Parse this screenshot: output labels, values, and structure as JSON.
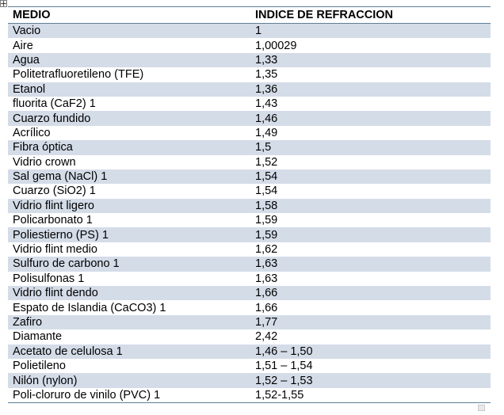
{
  "table": {
    "headers": [
      "MEDIO",
      "INDICE DE REFRACCION"
    ],
    "rows": [
      [
        "Vacio",
        "1"
      ],
      [
        "Aire",
        "1,00029"
      ],
      [
        "Agua",
        "1,33"
      ],
      [
        "Politetrafluoretileno (TFE)",
        "1,35"
      ],
      [
        "Etanol",
        "1,36"
      ],
      [
        "fluorita (CaF2) 1",
        "1,43"
      ],
      [
        "Cuarzo fundido",
        "1,46"
      ],
      [
        "Acrílico",
        "1,49"
      ],
      [
        "Fibra óptica",
        "1,5"
      ],
      [
        "Vidrio crown",
        "1,52"
      ],
      [
        "Sal gema (NaCl) 1",
        "1,54"
      ],
      [
        "Cuarzo (SiO2) 1",
        "1,54"
      ],
      [
        "Vidrio flint ligero",
        "1,58"
      ],
      [
        "Policarbonato 1",
        "1,59"
      ],
      [
        "Poliestierno (PS) 1",
        "1,59"
      ],
      [
        "Vidrio flint medio",
        "1,62"
      ],
      [
        "Sulfuro de carbono 1",
        "1,63"
      ],
      [
        "Polisulfonas 1",
        "1,63"
      ],
      [
        "Vidrio flint dendo",
        "1,66"
      ],
      [
        "Espato de Islandia (CaCO3) 1",
        "1,66"
      ],
      [
        "Zafiro",
        "1,77"
      ],
      [
        "Diamante",
        "2,42"
      ],
      [
        "Acetato de celulosa 1",
        "1,46 – 1,50"
      ],
      [
        "Polietileno",
        "1,51 – 1,54"
      ],
      [
        "Nilón (nylon)",
        "1,52 – 1,53"
      ],
      [
        "Poli-cloruro de vinilo (PVC) 1",
        "1,52-1,55"
      ]
    ]
  },
  "colors": {
    "band": "#d4dce8",
    "rule": "#5e7f96"
  },
  "icons": {
    "move_handle": "move-arrows-icon",
    "end_marker": "table-end-marker-icon"
  }
}
